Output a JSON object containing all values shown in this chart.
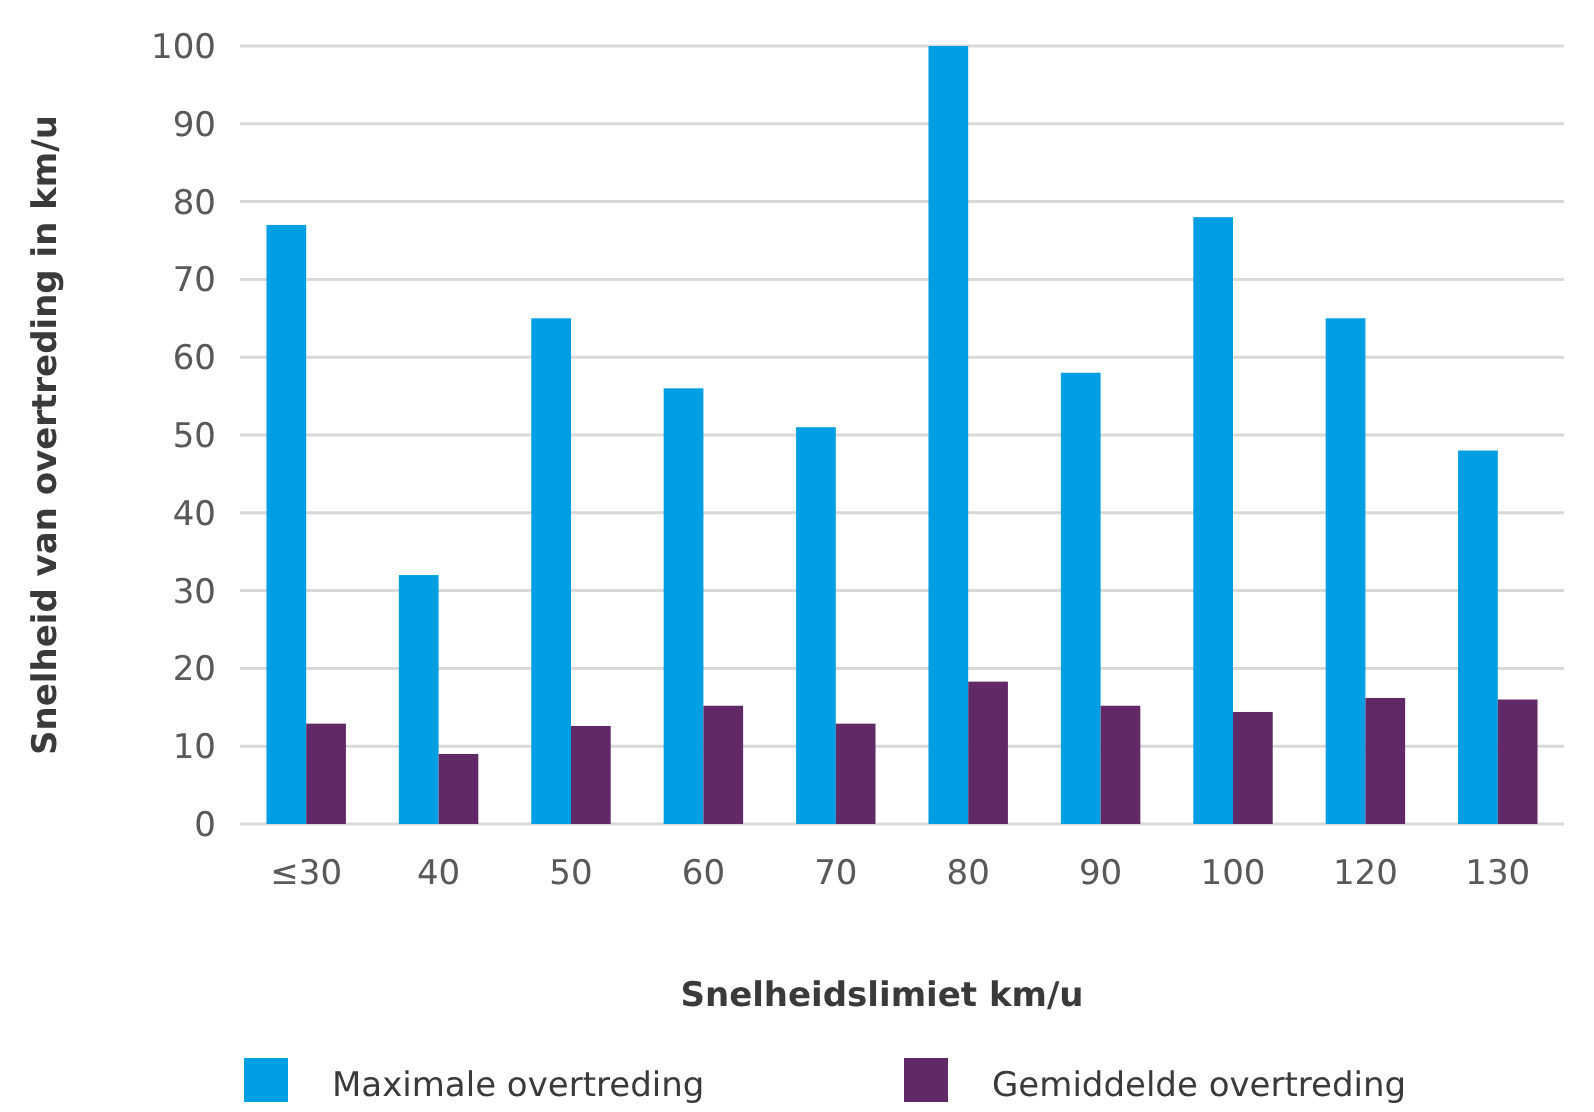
{
  "chart_data": {
    "type": "bar",
    "xlabel": "Snelheidslimiet km/u",
    "ylabel": "Snelheid van overtreding in km/u",
    "categories": [
      "≤30",
      "40",
      "50",
      "60",
      "70",
      "80",
      "90",
      "100",
      "120",
      "130"
    ],
    "series": [
      {
        "name": "Maximale overtreding",
        "color": "#009fe3",
        "values": [
          77,
          32,
          65,
          56,
          51,
          100,
          58,
          78,
          65,
          48
        ]
      },
      {
        "name": "Gemiddelde overtreding",
        "color": "#622968",
        "values": [
          12.9,
          9,
          12.6,
          15.2,
          12.9,
          18.3,
          15.2,
          14.4,
          16.2,
          16
        ]
      }
    ],
    "ylim": [
      0,
      100
    ],
    "yticks": [
      0,
      10,
      20,
      30,
      40,
      50,
      60,
      70,
      80,
      90,
      100
    ],
    "grid": "y",
    "legend": "bottom"
  }
}
